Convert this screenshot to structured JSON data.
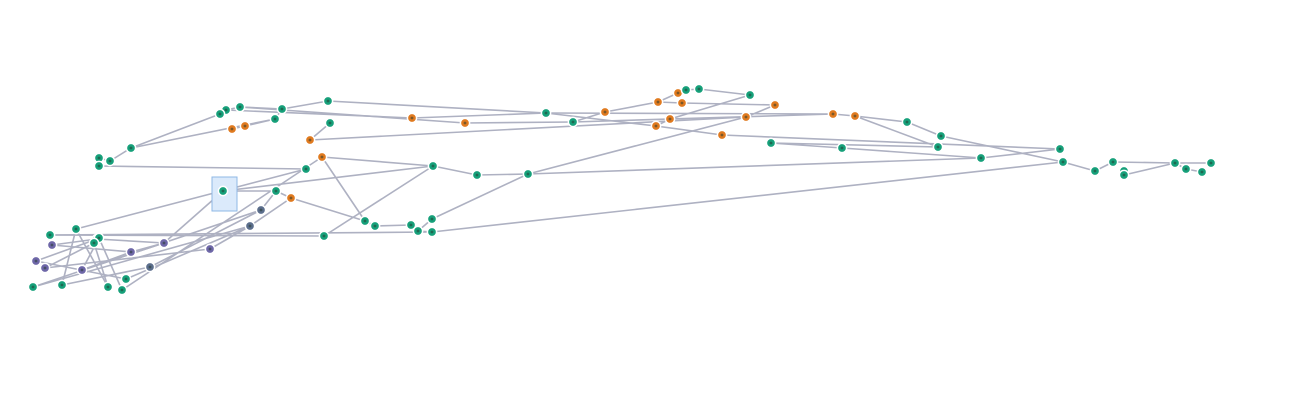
{
  "graph": {
    "colors": {
      "green": "#16a07a",
      "orange": "#e07a1f",
      "purple": "#6e67a8",
      "slate": "#5b6e8c",
      "edge": "#aeb1c2",
      "selection_fill": "#dbeafb",
      "selection_stroke": "#8fb8e6"
    },
    "selected_node": "n43"
  }
}
